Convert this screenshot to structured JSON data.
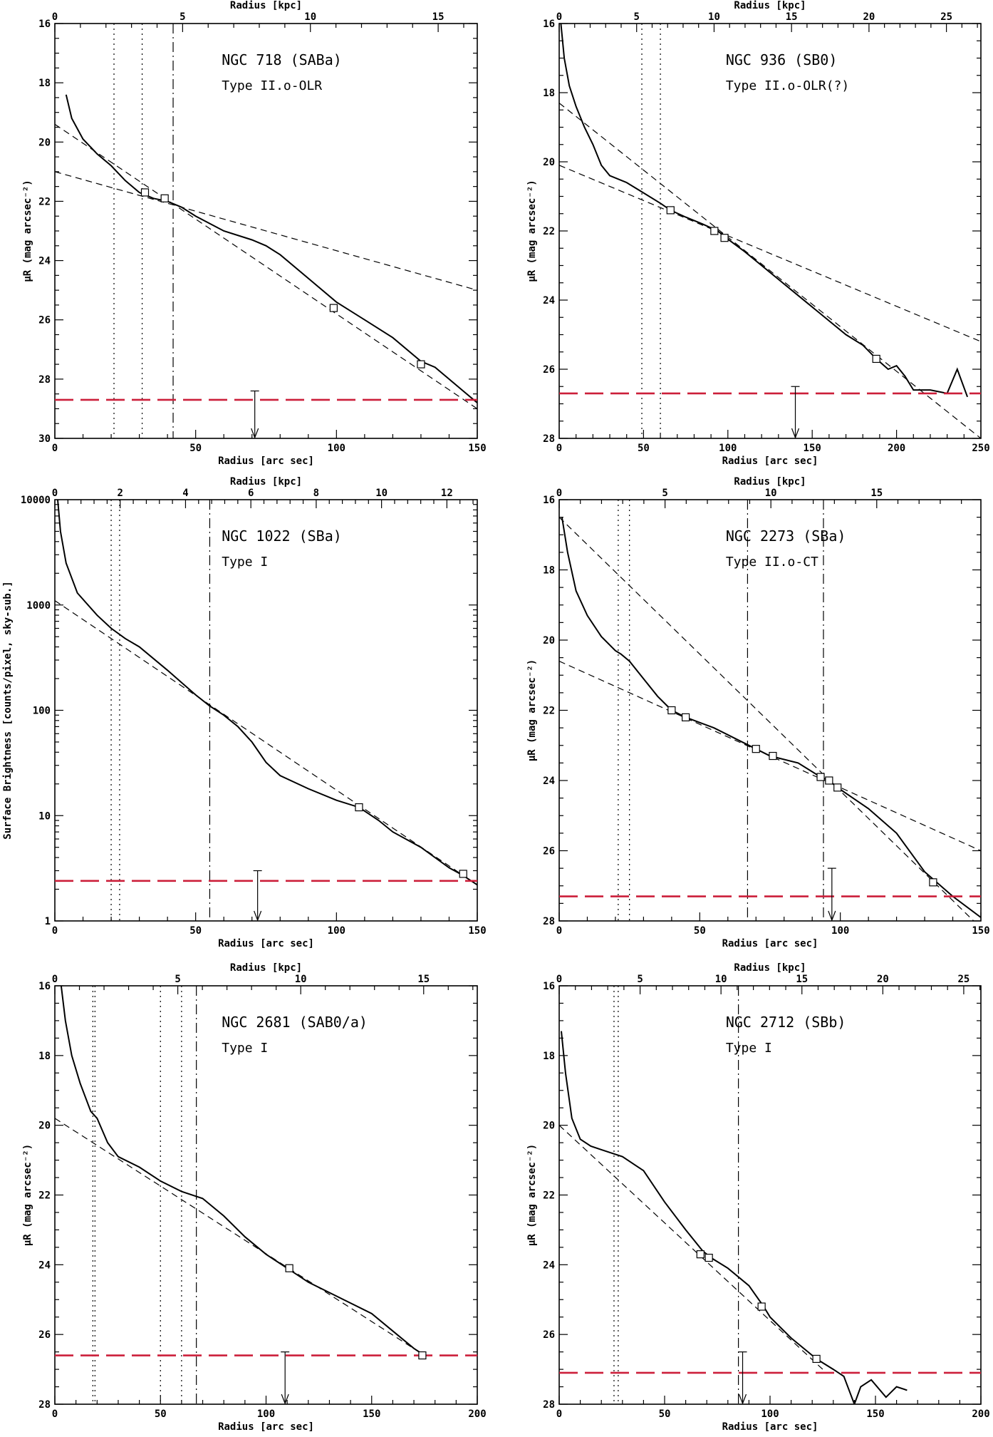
{
  "chart_data": [
    {
      "type": "line",
      "title": "NGC 718 (SABa)",
      "subtitle": "Type II.o-OLR",
      "xlabel": "Radius [arc sec]",
      "x2label": "Radius [kpc]",
      "ylabel": "μR (mag arcsec⁻²)",
      "xlim": [
        0,
        150
      ],
      "ylim": [
        16,
        30
      ],
      "y_inverted": true,
      "log_y": false,
      "xticks": [
        0,
        50,
        100,
        150
      ],
      "yticks": [
        16,
        18,
        20,
        22,
        24,
        26,
        28,
        30
      ],
      "x2_scale": 0.1102,
      "x2ticks": [
        0,
        5,
        10,
        15
      ],
      "profile": [
        [
          4,
          18.4
        ],
        [
          6,
          19.2
        ],
        [
          10,
          19.9
        ],
        [
          15,
          20.4
        ],
        [
          20,
          20.8
        ],
        [
          25,
          21.3
        ],
        [
          30,
          21.7
        ],
        [
          35,
          21.9
        ],
        [
          40,
          22.0
        ],
        [
          45,
          22.2
        ],
        [
          50,
          22.5
        ],
        [
          60,
          23.0
        ],
        [
          70,
          23.3
        ],
        [
          75,
          23.5
        ],
        [
          80,
          23.8
        ],
        [
          90,
          24.6
        ],
        [
          100,
          25.4
        ],
        [
          110,
          26.0
        ],
        [
          120,
          26.6
        ],
        [
          130,
          27.4
        ],
        [
          135,
          27.6
        ],
        [
          140,
          28.0
        ],
        [
          145,
          28.4
        ],
        [
          150,
          28.8
        ]
      ],
      "fits": [
        [
          [
            0,
            21.0
          ],
          [
            150,
            25.0
          ]
        ],
        [
          [
            0,
            19.4
          ],
          [
            150,
            29.0
          ]
        ]
      ],
      "markers": [
        [
          32,
          21.7
        ],
        [
          39,
          21.9
        ],
        [
          99,
          25.6
        ],
        [
          130,
          27.5
        ]
      ],
      "vlines": [
        {
          "x": 21,
          "style": "dotted"
        },
        {
          "x": 31,
          "style": "dotted"
        },
        {
          "x": 42,
          "style": "dashdot"
        }
      ],
      "sky_level": 28.7,
      "arrow": {
        "x": 71,
        "from": 28.4,
        "to": 30.0
      }
    },
    {
      "type": "line",
      "title": "NGC 936 (SB0)",
      "subtitle": "Type II.o-OLR(?)",
      "xlabel": "Radius [arc sec]",
      "x2label": "Radius [kpc]",
      "ylabel": "μR (mag arcsec⁻²)",
      "xlim": [
        0,
        250
      ],
      "ylim": [
        16,
        28
      ],
      "y_inverted": true,
      "log_y": false,
      "xticks": [
        0,
        50,
        100,
        150,
        200,
        250
      ],
      "yticks": [
        16,
        18,
        20,
        22,
        24,
        26,
        28
      ],
      "x2_scale": 0.1089,
      "x2ticks": [
        0,
        5,
        10,
        15,
        20,
        25
      ],
      "profile": [
        [
          1,
          16.0
        ],
        [
          3,
          17.0
        ],
        [
          6,
          17.8
        ],
        [
          10,
          18.4
        ],
        [
          15,
          19.0
        ],
        [
          20,
          19.5
        ],
        [
          25,
          20.1
        ],
        [
          30,
          20.4
        ],
        [
          40,
          20.6
        ],
        [
          50,
          20.9
        ],
        [
          60,
          21.2
        ],
        [
          66,
          21.4
        ],
        [
          75,
          21.6
        ],
        [
          85,
          21.8
        ],
        [
          94,
          22.0
        ],
        [
          99,
          22.2
        ],
        [
          110,
          22.6
        ],
        [
          120,
          23.0
        ],
        [
          130,
          23.4
        ],
        [
          140,
          23.8
        ],
        [
          150,
          24.2
        ],
        [
          160,
          24.6
        ],
        [
          170,
          25.0
        ],
        [
          180,
          25.3
        ],
        [
          188,
          25.7
        ],
        [
          195,
          26.0
        ],
        [
          200,
          25.9
        ],
        [
          205,
          26.2
        ],
        [
          210,
          26.6
        ],
        [
          220,
          26.6
        ],
        [
          230,
          26.7
        ],
        [
          236,
          26.0
        ],
        [
          242,
          26.8
        ]
      ],
      "fits": [
        [
          [
            0,
            20.1
          ],
          [
            250,
            25.2
          ]
        ],
        [
          [
            0,
            18.3
          ],
          [
            250,
            28.0
          ]
        ]
      ],
      "markers": [
        [
          66,
          21.4
        ],
        [
          92,
          22.0
        ],
        [
          98,
          22.2
        ],
        [
          188,
          25.7
        ]
      ],
      "vlines": [
        {
          "x": 49,
          "style": "dotted"
        },
        {
          "x": 60,
          "style": "dotted"
        }
      ],
      "sky_level": 26.7,
      "arrow": {
        "x": 140,
        "from": 26.5,
        "to": 28.0
      }
    },
    {
      "type": "line",
      "title": "NGC 1022 (SBa)",
      "subtitle": "Type I",
      "xlabel": "Radius [arc sec]",
      "x2label": "Radius [kpc]",
      "ylabel": "Surface Brightness [counts/pixel, sky-sub.]",
      "xlim": [
        0,
        150
      ],
      "ylim": [
        1,
        10000
      ],
      "log_y": true,
      "xticks": [
        0,
        50,
        100,
        150
      ],
      "yticks": [
        1,
        10,
        100,
        1000,
        10000
      ],
      "x2_scale": 0.0862,
      "x2ticks": [
        0,
        2,
        4,
        6,
        8,
        10,
        12
      ],
      "profile": [
        [
          1,
          10000
        ],
        [
          2,
          5000
        ],
        [
          4,
          2500
        ],
        [
          8,
          1300
        ],
        [
          15,
          800
        ],
        [
          20,
          600
        ],
        [
          25,
          480
        ],
        [
          30,
          400
        ],
        [
          40,
          240
        ],
        [
          50,
          140
        ],
        [
          55,
          110
        ],
        [
          60,
          90
        ],
        [
          65,
          70
        ],
        [
          70,
          50
        ],
        [
          75,
          32
        ],
        [
          80,
          24
        ],
        [
          90,
          18
        ],
        [
          100,
          14
        ],
        [
          108,
          12
        ],
        [
          115,
          9
        ],
        [
          120,
          7
        ],
        [
          130,
          5
        ],
        [
          140,
          3.2
        ],
        [
          145,
          2.7
        ],
        [
          150,
          2.2
        ]
      ],
      "fits": [
        [
          [
            0,
            1100
          ],
          [
            150,
            2.2
          ]
        ]
      ],
      "markers": [
        [
          108,
          12
        ],
        [
          145,
          2.8
        ]
      ],
      "vlines": [
        {
          "x": 20,
          "style": "dotted"
        },
        {
          "x": 23,
          "style": "dotted"
        },
        {
          "x": 55,
          "style": "dashdot"
        }
      ],
      "sky_level": 2.4,
      "arrow": {
        "x": 72,
        "from": 3.0,
        "to": 1.0
      }
    },
    {
      "type": "line",
      "title": "NGC 2273 (SBa)",
      "subtitle": "Type II.o-CT",
      "xlabel": "Radius [arc sec]",
      "x2label": "Radius [kpc]",
      "ylabel": "μR (mag arcsec⁻²)",
      "xlim": [
        0,
        150
      ],
      "ylim": [
        16,
        28
      ],
      "y_inverted": true,
      "log_y": false,
      "xticks": [
        0,
        50,
        100,
        150
      ],
      "yticks": [
        16,
        18,
        20,
        22,
        24,
        26,
        28
      ],
      "x2_scale": 0.1328,
      "x2ticks": [
        0,
        5,
        10,
        15
      ],
      "profile": [
        [
          1,
          16.5
        ],
        [
          3,
          17.5
        ],
        [
          6,
          18.6
        ],
        [
          10,
          19.3
        ],
        [
          15,
          19.9
        ],
        [
          20,
          20.3
        ],
        [
          22,
          20.4
        ],
        [
          25,
          20.6
        ],
        [
          30,
          21.1
        ],
        [
          35,
          21.6
        ],
        [
          40,
          22.0
        ],
        [
          45,
          22.2
        ],
        [
          55,
          22.5
        ],
        [
          65,
          22.9
        ],
        [
          70,
          23.1
        ],
        [
          75,
          23.3
        ],
        [
          85,
          23.5
        ],
        [
          93,
          23.9
        ],
        [
          96,
          24.0
        ],
        [
          99,
          24.2
        ],
        [
          110,
          24.8
        ],
        [
          120,
          25.5
        ],
        [
          130,
          26.6
        ],
        [
          140,
          27.3
        ],
        [
          150,
          27.9
        ]
      ],
      "fits": [
        [
          [
            0,
            20.6
          ],
          [
            150,
            26.0
          ]
        ],
        [
          [
            0,
            16.5
          ],
          [
            150,
            28.2
          ]
        ]
      ],
      "markers": [
        [
          40,
          22.0
        ],
        [
          45,
          22.2
        ],
        [
          70,
          23.1
        ],
        [
          76,
          23.3
        ],
        [
          93,
          23.9
        ],
        [
          96,
          24.0
        ],
        [
          99,
          24.2
        ],
        [
          133,
          26.9
        ]
      ],
      "vlines": [
        {
          "x": 21,
          "style": "dotted"
        },
        {
          "x": 25,
          "style": "dotted"
        },
        {
          "x": 67,
          "style": "dashdot"
        },
        {
          "x": 94,
          "style": "dashdot"
        }
      ],
      "sky_level": 27.3,
      "arrow": {
        "x": 97,
        "from": 26.5,
        "to": 28.0
      }
    },
    {
      "type": "line",
      "title": "NGC 2681 (SAB0/a)",
      "subtitle": "Type I",
      "xlabel": "Radius [arc sec]",
      "x2label": "Radius [kpc]",
      "ylabel": "μR (mag arcsec⁻²)",
      "xlim": [
        0,
        200
      ],
      "ylim": [
        16,
        28
      ],
      "y_inverted": true,
      "log_y": false,
      "xticks": [
        0,
        50,
        100,
        150,
        200
      ],
      "yticks": [
        16,
        18,
        20,
        22,
        24,
        26,
        28
      ],
      "x2_scale": 0.0859,
      "x2ticks": [
        0,
        5,
        10,
        15
      ],
      "profile": [
        [
          3,
          16.0
        ],
        [
          5,
          17.0
        ],
        [
          8,
          18.0
        ],
        [
          12,
          18.8
        ],
        [
          17,
          19.6
        ],
        [
          20,
          19.8
        ],
        [
          25,
          20.5
        ],
        [
          30,
          20.9
        ],
        [
          40,
          21.2
        ],
        [
          50,
          21.6
        ],
        [
          60,
          21.9
        ],
        [
          70,
          22.1
        ],
        [
          80,
          22.6
        ],
        [
          90,
          23.2
        ],
        [
          100,
          23.7
        ],
        [
          110,
          24.1
        ],
        [
          120,
          24.5
        ],
        [
          140,
          25.1
        ],
        [
          150,
          25.4
        ],
        [
          160,
          25.9
        ],
        [
          170,
          26.4
        ],
        [
          175,
          26.6
        ]
      ],
      "fits": [
        [
          [
            0,
            19.8
          ],
          [
            175,
            26.6
          ]
        ]
      ],
      "markers": [
        [
          111,
          24.1
        ],
        [
          174,
          26.6
        ]
      ],
      "vlines": [
        {
          "x": 18,
          "style": "dotted"
        },
        {
          "x": 19,
          "style": "dotted"
        },
        {
          "x": 50,
          "style": "dotted"
        },
        {
          "x": 60,
          "style": "dotted"
        },
        {
          "x": 67,
          "style": "dashdot"
        }
      ],
      "sky_level": 26.6,
      "arrow": {
        "x": 109,
        "from": 26.5,
        "to": 28.0
      }
    },
    {
      "type": "line",
      "title": "NGC 2712 (SBb)",
      "subtitle": "Type I",
      "xlabel": "Radius [arc sec]",
      "x2label": "Radius [kpc]",
      "ylabel": "μR (mag arcsec⁻²)",
      "xlim": [
        0,
        200
      ],
      "ylim": [
        16,
        28
      ],
      "y_inverted": true,
      "log_y": false,
      "xticks": [
        0,
        50,
        100,
        150,
        200
      ],
      "yticks": [
        16,
        18,
        20,
        22,
        24,
        26,
        28
      ],
      "x2_scale": 0.1303,
      "x2ticks": [
        0,
        5,
        10,
        15,
        20,
        25
      ],
      "profile": [
        [
          1,
          17.3
        ],
        [
          3,
          18.5
        ],
        [
          6,
          19.8
        ],
        [
          10,
          20.4
        ],
        [
          15,
          20.6
        ],
        [
          20,
          20.7
        ],
        [
          30,
          20.9
        ],
        [
          40,
          21.3
        ],
        [
          50,
          22.2
        ],
        [
          60,
          23.0
        ],
        [
          68,
          23.6
        ],
        [
          72,
          23.8
        ],
        [
          80,
          24.1
        ],
        [
          90,
          24.6
        ],
        [
          97,
          25.2
        ],
        [
          100,
          25.5
        ],
        [
          110,
          26.1
        ],
        [
          118,
          26.5
        ],
        [
          122,
          26.7
        ],
        [
          130,
          27.0
        ],
        [
          135,
          27.2
        ],
        [
          140,
          28.0
        ],
        [
          143,
          27.5
        ],
        [
          148,
          27.3
        ],
        [
          155,
          27.8
        ],
        [
          160,
          27.5
        ],
        [
          165,
          27.6
        ]
      ],
      "fits": [
        [
          [
            0,
            20.0
          ],
          [
            125,
            27.0
          ]
        ]
      ],
      "markers": [
        [
          67,
          23.7
        ],
        [
          71,
          23.8
        ],
        [
          96,
          25.2
        ],
        [
          122,
          26.7
        ]
      ],
      "vlines": [
        {
          "x": 26,
          "style": "dotted"
        },
        {
          "x": 28,
          "style": "dotted"
        },
        {
          "x": 85,
          "style": "dashdot"
        }
      ],
      "sky_level": 27.1,
      "arrow": {
        "x": 87,
        "from": 26.5,
        "to": 28.0
      }
    }
  ]
}
